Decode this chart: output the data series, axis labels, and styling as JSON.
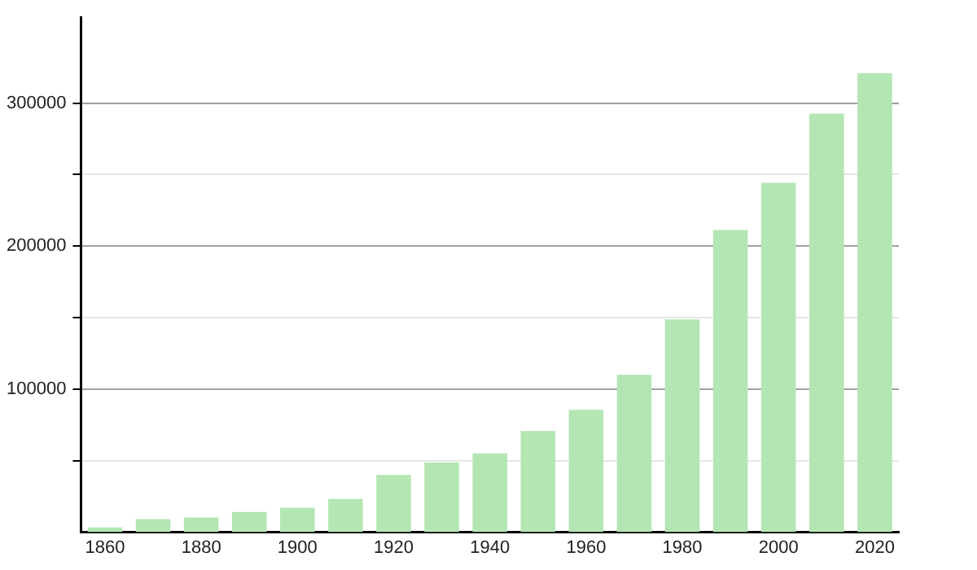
{
  "chart_data": {
    "type": "bar",
    "categories": [
      "1860",
      null,
      "1880",
      null,
      "1900",
      null,
      "1920",
      null,
      "1940",
      null,
      "1960",
      null,
      "1980",
      null,
      "2000",
      null,
      "2020"
    ],
    "values": [
      3400,
      9100,
      10300,
      14100,
      17100,
      23200,
      40000,
      48700,
      55200,
      70800,
      85600,
      110000,
      148800,
      211200,
      244300,
      292600,
      320800
    ],
    "color": "#b3e6b3",
    "ylim": [
      0,
      360000
    ],
    "yticks": [
      {
        "value": 50000,
        "label": null
      },
      100000,
      {
        "value": 150000,
        "label": null
      },
      200000,
      {
        "value": 250000,
        "label": null
      },
      300000
    ],
    "grid": "y",
    "legend": false
  }
}
